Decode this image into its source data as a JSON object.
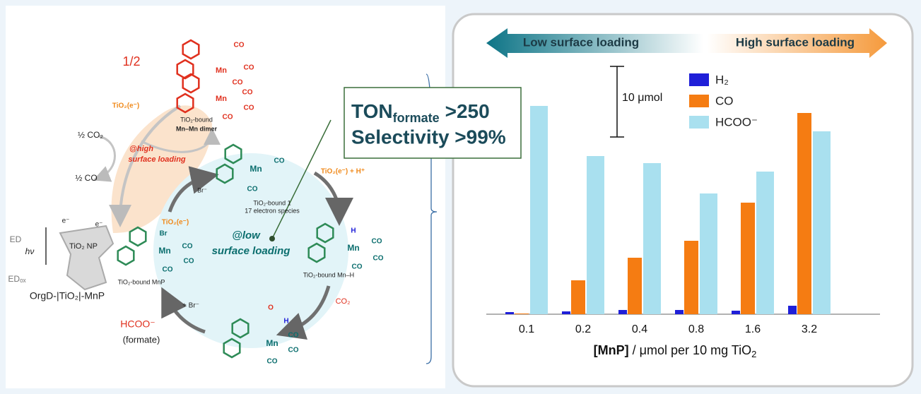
{
  "chart_data": {
    "type": "bar",
    "categories": [
      "0.1",
      "0.2",
      "0.4",
      "0.8",
      "1.6",
      "3.2"
    ],
    "series": [
      {
        "name": "H₂",
        "color": "#1f1fd8",
        "values": [
          0.3,
          0.4,
          0.6,
          0.6,
          0.5,
          1.2
        ]
      },
      {
        "name": "CO",
        "color": "#f57c12",
        "values": [
          0.1,
          4.8,
          8.0,
          10.4,
          15.8,
          28.5
        ]
      },
      {
        "name": "HCOO⁻",
        "color": "#a9e0ef",
        "values": [
          29.5,
          22.4,
          21.4,
          17.1,
          20.2,
          25.9
        ]
      }
    ],
    "ylim": [
      0,
      36
    ],
    "x_label": {
      "bold": "[MnP]",
      "text": " / μmol per 10 mg TiO",
      "sub": "2"
    },
    "scale_bar": {
      "value": 10,
      "label": "10 μmol"
    },
    "annotations": {
      "low": "Low surface loading",
      "high": "High surface loading",
      "ton": "TON",
      "ton_sub": "formate",
      "ton_value": ">250",
      "selectivity": "Selectivity >99%"
    }
  },
  "scheme": {
    "labels": [
      "1/2",
      "Mn",
      "CO",
      "CO",
      "CO",
      "Mn",
      "CO",
      "CO",
      "CO",
      "TiO₂(e⁻)",
      "TiO₂-bound",
      "Mn–Mn dimer",
      "½ CO₂",
      "½ CO",
      "@high",
      "surface loading",
      "TiO₂(e⁻) + H⁺",
      "Br⁻",
      "Mn",
      "CO",
      "CO",
      "TiO₂-bound 1",
      "17 electron species",
      "TiO₂(e⁻)",
      "@low",
      "surface loading",
      "Br",
      "Mn",
      "CO",
      "CO",
      "CO",
      "TiO₂-bound MnP",
      "H",
      "Mn",
      "CO",
      "CO",
      "CO",
      "TiO₂-bound Mn–H",
      "CO₂",
      "+ Br⁻",
      "HCOO⁻",
      "(formate)",
      "OrgD-|TiO₂|-MnP",
      "TiO₂ NP",
      "hν",
      "ED",
      "EDₒₓ",
      "e⁻",
      "e⁻",
      "O",
      "H",
      "Mn",
      "CO",
      "CO",
      "CO"
    ]
  }
}
